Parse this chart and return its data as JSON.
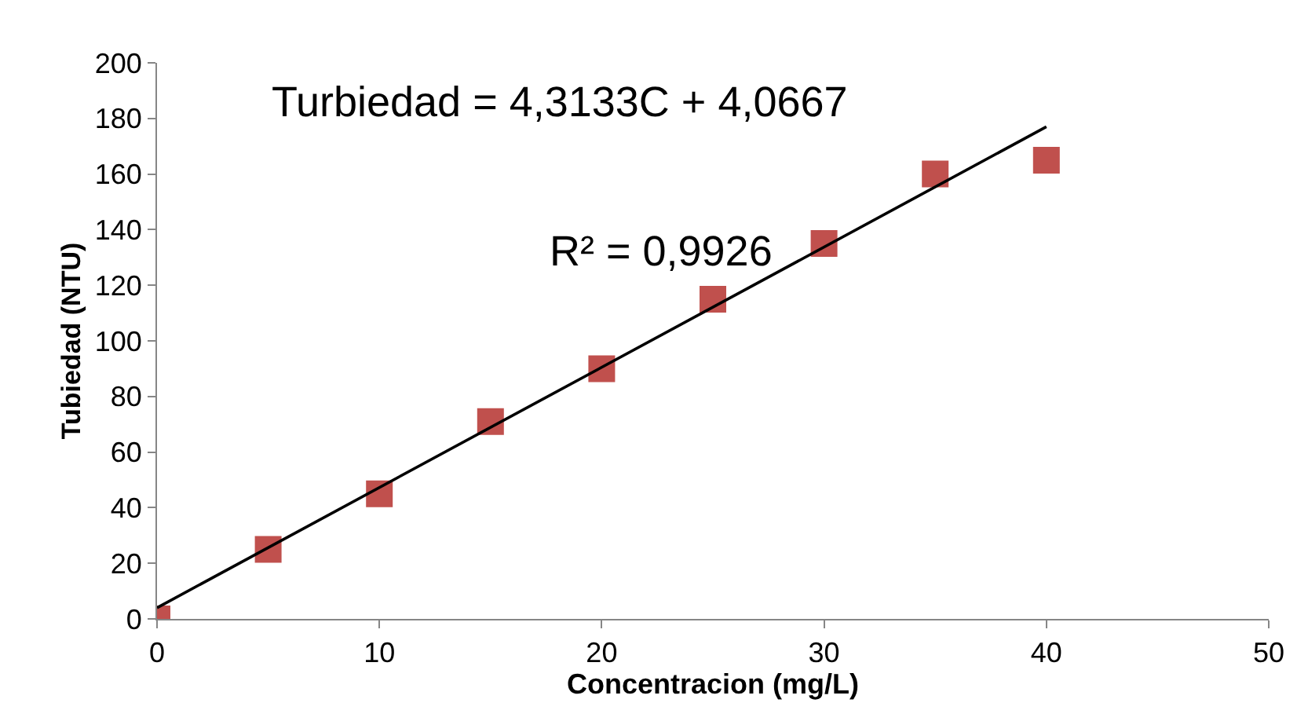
{
  "chart_data": {
    "type": "scatter",
    "xlabel": "Concentracion (mg/L)",
    "ylabel": "Tubiedad (NTU)",
    "xlim": [
      0,
      50
    ],
    "xticks": [
      0,
      10,
      20,
      30,
      40,
      50
    ],
    "ylim": [
      0,
      200
    ],
    "yticks": [
      0,
      20,
      40,
      60,
      80,
      100,
      120,
      140,
      160,
      180,
      200
    ],
    "series": [
      {
        "marker": "square",
        "color": "#c0504d",
        "x": [
          0,
          5,
          10,
          15,
          20,
          25,
          30,
          35,
          40
        ],
        "values": [
          0,
          25,
          45,
          71,
          90,
          115,
          135,
          160,
          165
        ]
      },
      {
        "type": "line",
        "marker": "none",
        "color": "#000000",
        "x": [
          0,
          40
        ],
        "values": [
          4,
          177
        ]
      }
    ],
    "annotations": [
      "Turbiedad = 4,3133C + 4,0667",
      "R² = 0,9926"
    ]
  }
}
